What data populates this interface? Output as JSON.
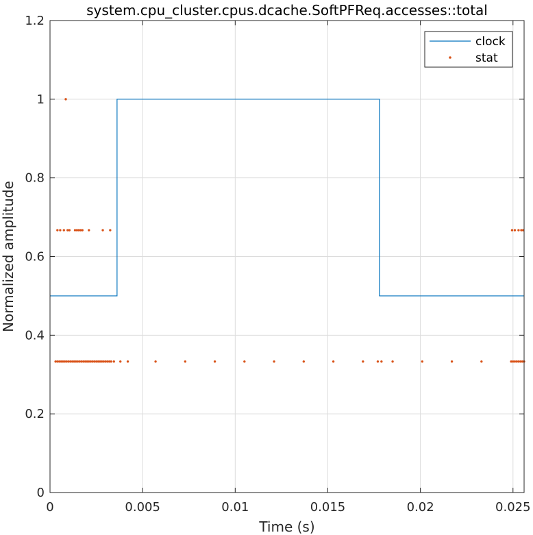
{
  "chart_data": {
    "type": "line",
    "title": "system.cpu_cluster.cpus.dcache.SoftPFReq.accesses::total",
    "xlabel": "Time (s)",
    "ylabel": "Normalized amplitude",
    "xlim": [
      0,
      0.0256
    ],
    "ylim": [
      0,
      1.2
    ],
    "grid": true,
    "legend_position": "top-right",
    "x_ticks": [
      0,
      0.005,
      0.01,
      0.015,
      0.02,
      0.025
    ],
    "x_tick_labels": [
      "0",
      "0.005",
      "0.01",
      "0.015",
      "0.02",
      "0.025"
    ],
    "y_ticks": [
      0,
      0.2,
      0.4,
      0.6,
      0.8,
      1,
      1.2
    ],
    "y_tick_labels": [
      "0",
      "0.2",
      "0.4",
      "0.6",
      "0.8",
      "1",
      "1.2"
    ],
    "series": [
      {
        "name": "clock",
        "style": "step-line",
        "color": "#0072BD",
        "x": [
          0,
          0.00362,
          0.00362,
          0.01779,
          0.01779,
          0.0256
        ],
        "y": [
          0.5,
          0.5,
          1,
          1,
          0.5,
          0.5
        ]
      },
      {
        "name": "stat",
        "style": "dots",
        "color": "#D95319",
        "points": [
          [
            0.00085,
            1.0
          ],
          [
            0.0004,
            0.667
          ],
          [
            0.00055,
            0.667
          ],
          [
            0.00075,
            0.667
          ],
          [
            0.00095,
            0.667
          ],
          [
            0.00105,
            0.667
          ],
          [
            0.00135,
            0.667
          ],
          [
            0.00145,
            0.667
          ],
          [
            0.00155,
            0.667
          ],
          [
            0.00165,
            0.667
          ],
          [
            0.00175,
            0.667
          ],
          [
            0.0021,
            0.667
          ],
          [
            0.00285,
            0.667
          ],
          [
            0.00325,
            0.667
          ],
          [
            0.02495,
            0.667
          ],
          [
            0.0251,
            0.667
          ],
          [
            0.0253,
            0.667
          ],
          [
            0.02545,
            0.667
          ],
          [
            0.02555,
            0.667
          ],
          [
            0.0003,
            0.333
          ],
          [
            0.0004,
            0.333
          ],
          [
            0.0005,
            0.333
          ],
          [
            0.0006,
            0.333
          ],
          [
            0.0007,
            0.333
          ],
          [
            0.0008,
            0.333
          ],
          [
            0.0009,
            0.333
          ],
          [
            0.001,
            0.333
          ],
          [
            0.0011,
            0.333
          ],
          [
            0.0012,
            0.333
          ],
          [
            0.0013,
            0.333
          ],
          [
            0.0014,
            0.333
          ],
          [
            0.0015,
            0.333
          ],
          [
            0.0016,
            0.333
          ],
          [
            0.0017,
            0.333
          ],
          [
            0.0018,
            0.333
          ],
          [
            0.0019,
            0.333
          ],
          [
            0.002,
            0.333
          ],
          [
            0.0021,
            0.333
          ],
          [
            0.0022,
            0.333
          ],
          [
            0.0023,
            0.333
          ],
          [
            0.0024,
            0.333
          ],
          [
            0.0025,
            0.333
          ],
          [
            0.0026,
            0.333
          ],
          [
            0.0027,
            0.333
          ],
          [
            0.0028,
            0.333
          ],
          [
            0.0029,
            0.333
          ],
          [
            0.003,
            0.333
          ],
          [
            0.0031,
            0.333
          ],
          [
            0.0032,
            0.333
          ],
          [
            0.0033,
            0.333
          ],
          [
            0.00345,
            0.333
          ],
          [
            0.0038,
            0.333
          ],
          [
            0.0042,
            0.333
          ],
          [
            0.0057,
            0.333
          ],
          [
            0.0073,
            0.333
          ],
          [
            0.0089,
            0.333
          ],
          [
            0.0105,
            0.333
          ],
          [
            0.0121,
            0.333
          ],
          [
            0.0137,
            0.333
          ],
          [
            0.0153,
            0.333
          ],
          [
            0.0169,
            0.333
          ],
          [
            0.0177,
            0.333
          ],
          [
            0.0179,
            0.333
          ],
          [
            0.0185,
            0.333
          ],
          [
            0.0201,
            0.333
          ],
          [
            0.0217,
            0.333
          ],
          [
            0.0233,
            0.333
          ],
          [
            0.0249,
            0.333
          ],
          [
            0.025,
            0.333
          ],
          [
            0.0251,
            0.333
          ],
          [
            0.0252,
            0.333
          ],
          [
            0.0253,
            0.333
          ],
          [
            0.0254,
            0.333
          ],
          [
            0.0255,
            0.333
          ],
          [
            0.0256,
            0.333
          ]
        ]
      }
    ]
  }
}
